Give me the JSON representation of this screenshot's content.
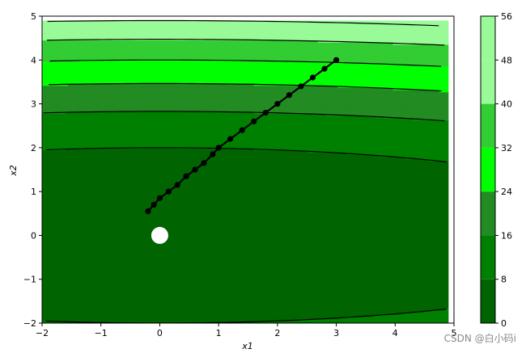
{
  "chart_data": {
    "type": "contourf",
    "xlabel": "x1",
    "ylabel": "x2",
    "xlim": [
      -2,
      5
    ],
    "ylim": [
      -2,
      5
    ],
    "x_ticks": [
      -2,
      -1,
      0,
      1,
      2,
      3,
      4,
      5
    ],
    "y_ticks": [
      -2,
      -1,
      0,
      1,
      2,
      3,
      4,
      5
    ],
    "x_tick_labels": [
      "−2",
      "−1",
      "0",
      "1",
      "2",
      "3",
      "4",
      "5"
    ],
    "y_tick_labels": [
      "−2",
      "−1",
      "0",
      "1",
      "2",
      "3",
      "4",
      "5"
    ],
    "function": "f(x1,x2) = 0.1*x1^2 + 2*x2^2",
    "levels": [
      0,
      8,
      16,
      24,
      32,
      40,
      48,
      56
    ],
    "level_colors": [
      "#006400",
      "#008000",
      "#228B22",
      "#00FF00",
      "#32CD32",
      "#98FB98",
      "#98FB98"
    ],
    "colorbar": {
      "ticks": [
        0,
        8,
        16,
        24,
        32,
        40,
        48,
        56
      ],
      "tick_labels": [
        "0",
        "8",
        "16",
        "24",
        "32",
        "40",
        "48",
        "56"
      ]
    },
    "minimum_marker": {
      "x": 0,
      "y": 0,
      "color": "#ffffff"
    },
    "trajectory": {
      "color": "#000000",
      "x": [
        3.0,
        2.8,
        2.6,
        2.4,
        2.2,
        2.0,
        1.8,
        1.6,
        1.4,
        1.2,
        1.0,
        0.9,
        0.75,
        0.6,
        0.45,
        0.3,
        0.15,
        0.0,
        -0.1,
        -0.2
      ],
      "y": [
        4.0,
        3.8,
        3.6,
        3.4,
        3.2,
        3.0,
        2.8,
        2.6,
        2.4,
        2.2,
        2.0,
        1.85,
        1.65,
        1.5,
        1.35,
        1.15,
        1.0,
        0.85,
        0.7,
        0.55
      ]
    }
  },
  "watermark": "CSDN @白小码i"
}
